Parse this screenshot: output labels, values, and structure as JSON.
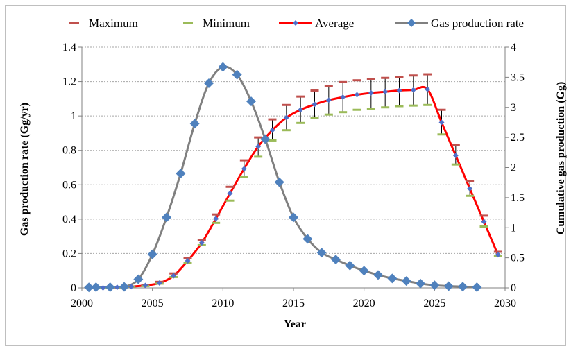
{
  "chart_data": {
    "type": "line",
    "title": "",
    "xlabel": "Year",
    "ylabel_left": "Gas production rate (Gg/yr)",
    "ylabel_right": "Cumulative gas production (Gg)",
    "xlim": [
      2000,
      2030
    ],
    "ylim_left": [
      0,
      1.4
    ],
    "ylim_right": [
      0,
      4
    ],
    "x_ticks": [
      2000,
      2005,
      2010,
      2015,
      2020,
      2025,
      2030
    ],
    "y_ticks_left": [
      "0",
      "0.2",
      "0.4",
      "0.6",
      "0.8",
      "1",
      "1.2",
      "1.4"
    ],
    "y_ticks_right": [
      "0",
      "0.5",
      "1",
      "1.5",
      "2",
      "2.5",
      "3",
      "3.5",
      "4"
    ],
    "grid": "horizontal dashed",
    "legend_position": "top",
    "legend": [
      {
        "label": "Maximum",
        "color": "#c0504d",
        "marker": "dash"
      },
      {
        "label": "Minimum",
        "color": "#9bbb59",
        "marker": "dash"
      },
      {
        "label": "Average",
        "color": "#ff0000",
        "marker": "diamond"
      },
      {
        "label": "Gas production rate",
        "color": "#808080",
        "marker": "diamond"
      }
    ],
    "colors": {
      "maximum": "#c0504d",
      "minimum": "#9bbb59",
      "average_line": "#ff0000",
      "average_marker": "#4f6fc8",
      "rate_line": "#808080",
      "rate_marker": "#4f81bd"
    },
    "series": [
      {
        "name": "Gas production rate",
        "axis": "left",
        "x": [
          2000.5,
          2001,
          2002,
          2003,
          2004,
          2005,
          2006,
          2007,
          2008,
          2009,
          2010,
          2011,
          2012,
          2013,
          2014,
          2015,
          2016,
          2017,
          2018,
          2019,
          2020,
          2021,
          2022,
          2023,
          2024,
          2025,
          2026,
          2027,
          2028
        ],
        "values": [
          0.003,
          0.004,
          0.004,
          0.006,
          0.05,
          0.195,
          0.41,
          0.665,
          0.955,
          1.19,
          1.285,
          1.24,
          1.085,
          0.865,
          0.615,
          0.41,
          0.285,
          0.205,
          0.165,
          0.13,
          0.1,
          0.075,
          0.055,
          0.04,
          0.025,
          0.015,
          0.01,
          0.007,
          0.004
        ]
      },
      {
        "name": "Average",
        "axis": "right",
        "x": [
          2000.5,
          2001.5,
          2002.5,
          2003.5,
          2004.5,
          2005.5,
          2006.5,
          2007.5,
          2008.5,
          2009.5,
          2010.5,
          2011.5,
          2012.5,
          2013.5,
          2014.5,
          2015.5,
          2016.5,
          2017.5,
          2018.5,
          2019.5,
          2020.5,
          2021.5,
          2022.5,
          2023.5,
          2024.5,
          2025.5,
          2026.5,
          2027.5,
          2028.5,
          2029.5
        ],
        "values": [
          0.0,
          0.0,
          0.01,
          0.02,
          0.04,
          0.08,
          0.2,
          0.45,
          0.75,
          1.15,
          1.57,
          1.98,
          2.35,
          2.62,
          2.83,
          2.96,
          3.05,
          3.12,
          3.17,
          3.21,
          3.24,
          3.26,
          3.28,
          3.29,
          3.3,
          2.75,
          2.2,
          1.65,
          1.1,
          0.55
        ]
      },
      {
        "name": "Maximum",
        "axis": "right",
        "x": [
          2000.5,
          2001.5,
          2002.5,
          2003.5,
          2004.5,
          2005.5,
          2006.5,
          2007.5,
          2008.5,
          2009.5,
          2010.5,
          2011.5,
          2012.5,
          2013.5,
          2014.5,
          2015.5,
          2016.5,
          2017.5,
          2018.5,
          2019.5,
          2020.5,
          2021.5,
          2022.5,
          2023.5,
          2024.5,
          2025.5,
          2026.5,
          2027.5,
          2028.5,
          2029.5
        ],
        "values": [
          0.0,
          0.0,
          0.01,
          0.02,
          0.05,
          0.1,
          0.24,
          0.5,
          0.8,
          1.22,
          1.68,
          2.12,
          2.5,
          2.8,
          3.04,
          3.18,
          3.28,
          3.36,
          3.42,
          3.45,
          3.47,
          3.49,
          3.51,
          3.53,
          3.55,
          2.96,
          2.37,
          1.78,
          1.2,
          0.6
        ]
      },
      {
        "name": "Minimum",
        "axis": "right",
        "x": [
          2000.5,
          2001.5,
          2002.5,
          2003.5,
          2004.5,
          2005.5,
          2006.5,
          2007.5,
          2008.5,
          2009.5,
          2010.5,
          2011.5,
          2012.5,
          2013.5,
          2014.5,
          2015.5,
          2016.5,
          2017.5,
          2018.5,
          2019.5,
          2020.5,
          2021.5,
          2022.5,
          2023.5,
          2024.5,
          2025.5,
          2026.5,
          2027.5,
          2028.5,
          2029.5
        ],
        "values": [
          0.0,
          0.0,
          0.01,
          0.02,
          0.03,
          0.07,
          0.18,
          0.42,
          0.71,
          1.08,
          1.45,
          1.85,
          2.18,
          2.45,
          2.62,
          2.74,
          2.83,
          2.88,
          2.92,
          2.96,
          2.98,
          3.0,
          3.02,
          3.03,
          3.04,
          2.55,
          2.05,
          1.53,
          1.02,
          0.53
        ]
      }
    ]
  }
}
